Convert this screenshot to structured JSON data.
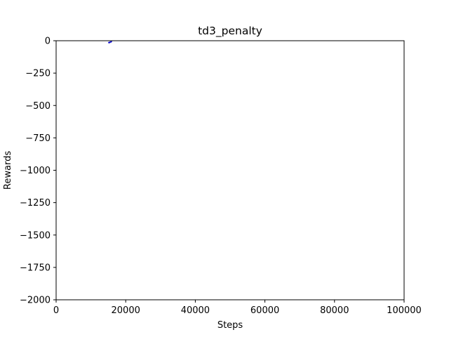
{
  "chart_data": {
    "type": "line",
    "title": "td3_penalty",
    "xlabel": "Steps",
    "ylabel": "Rewards",
    "xlim": [
      0,
      100000
    ],
    "ylim": [
      -2000,
      0
    ],
    "xticks": [
      0,
      20000,
      40000,
      60000,
      80000,
      100000
    ],
    "xtick_labels": [
      "0",
      "20000",
      "40000",
      "60000",
      "80000",
      "100000"
    ],
    "yticks": [
      0,
      -250,
      -500,
      -750,
      -1000,
      -1250,
      -1500,
      -1750,
      -2000
    ],
    "ytick_labels": [
      "0",
      "−250",
      "−500",
      "−750",
      "−1000",
      "−1250",
      "−1500",
      "−1750",
      "−2000"
    ],
    "grid": false,
    "legend": "none",
    "series": [
      {
        "color": "#0000cc",
        "x": [
          15000,
          15200,
          15400,
          15600,
          15800,
          16000
        ],
        "y": [
          -18,
          -12,
          -15,
          -8,
          -10,
          -3
        ]
      }
    ]
  }
}
